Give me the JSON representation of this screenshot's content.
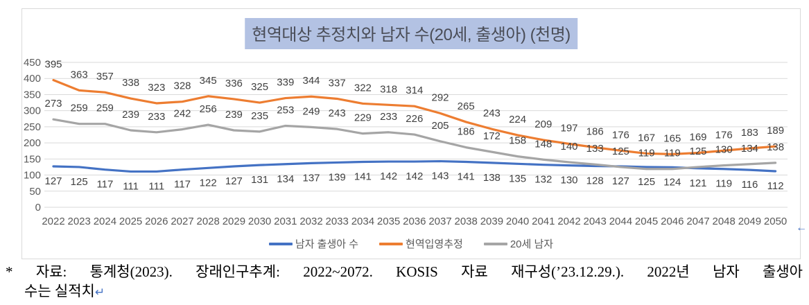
{
  "chart_data": {
    "type": "line",
    "title": "현역대상 추정치와 남자 수(20세, 출생아) (천명)",
    "categories": [
      "2022",
      "2023",
      "2024",
      "2025",
      "2026",
      "2027",
      "2028",
      "2029",
      "2030",
      "2031",
      "2032",
      "2033",
      "2034",
      "2035",
      "2036",
      "2037",
      "2038",
      "2039",
      "2040",
      "2041",
      "2042",
      "2043",
      "2044",
      "2045",
      "2046",
      "2047",
      "2048",
      "2049",
      "2050"
    ],
    "series": [
      {
        "name": "남자 출생아 수",
        "color": "#4472C4",
        "label_position": "below",
        "values": [
          127,
          125,
          117,
          111,
          111,
          117,
          122,
          127,
          131,
          134,
          137,
          139,
          141,
          142,
          142,
          143,
          141,
          138,
          135,
          132,
          130,
          128,
          127,
          125,
          124,
          121,
          119,
          116,
          112
        ]
      },
      {
        "name": "현역입영추정",
        "color": "#ED7D31",
        "label_position": "above",
        "values": [
          395,
          363,
          357,
          338,
          323,
          328,
          345,
          336,
          325,
          339,
          344,
          337,
          322,
          318,
          314,
          292,
          265,
          243,
          224,
          209,
          197,
          186,
          176,
          167,
          165,
          169,
          176,
          183,
          189
        ]
      },
      {
        "name": "20세 남자",
        "color": "#A5A5A5",
        "label_position": "above",
        "values": [
          273,
          259,
          259,
          239,
          233,
          242,
          256,
          239,
          235,
          253,
          249,
          243,
          229,
          233,
          226,
          205,
          186,
          172,
          158,
          148,
          140,
          133,
          125,
          119,
          119,
          125,
          130,
          134,
          138
        ]
      }
    ],
    "ylim": [
      0,
      450
    ],
    "y_tick_step": 50,
    "grid": true,
    "legend_position": "bottom",
    "data_labels": true
  },
  "title_style": {
    "background": "#B3C2E3",
    "text_color": "#4A4D57"
  },
  "axis_style": {
    "label_color": "#595959",
    "data_label_color": "#404040",
    "grid_color": "#D9D9D9"
  },
  "footnote": {
    "line1": "* 자료: 통계청(2023). 장래인구추계: 2022~2072. KOSIS 자료 재구성(’23.12.29.). 2022년 남자 출생아",
    "line2": "수는 실적치",
    "return_mark": "↵",
    "mark_color": "#4472C4"
  },
  "side_arrow": {
    "glyph": "←",
    "color": "#4472C4"
  }
}
